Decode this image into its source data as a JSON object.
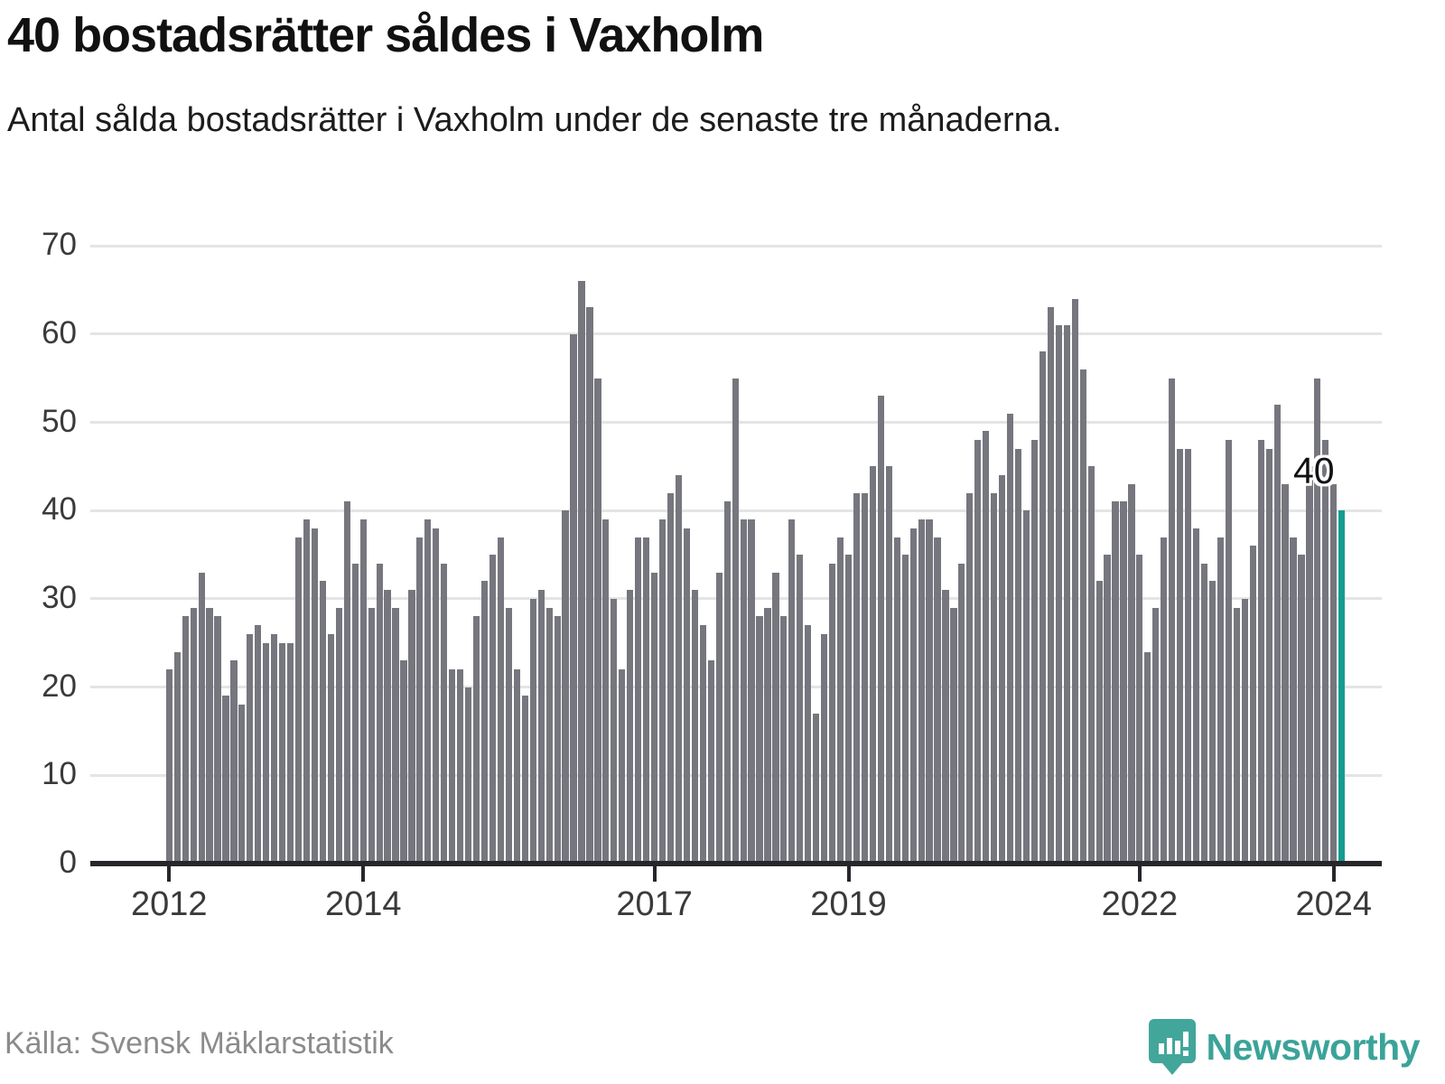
{
  "header": {
    "title": "40 bostadsrätter såldes i Vaxholm",
    "subtitle": "Antal sålda bostadsrätter i Vaxholm under de senaste tre månaderna."
  },
  "footer": {
    "source": "Källa: Svensk Mäklarstatistik",
    "brand": "Newsworthy"
  },
  "colors": {
    "bar": "#76767e",
    "highlight": "#149c91",
    "gridline": "#e4e4e4",
    "axis": "#26262b",
    "brand_teal": "#3ba399"
  },
  "chart_data": {
    "type": "bar",
    "title": "40 bostadsrätter såldes i Vaxholm",
    "subtitle": "Antal sålda bostadsrätter i Vaxholm under de senaste tre månaderna.",
    "source": "Källa: Svensk Mäklarstatistik",
    "xlabel": "",
    "ylabel": "",
    "ylim": [
      0,
      70
    ],
    "yticks": [
      0,
      10,
      20,
      30,
      40,
      50,
      60,
      70
    ],
    "grid": "horizontal",
    "start_month": "2012-01",
    "end_month": "2024-02",
    "x_ticks": [
      {
        "label": "2012",
        "month_index": 0
      },
      {
        "label": "2014",
        "month_index": 24
      },
      {
        "label": "2017",
        "month_index": 60
      },
      {
        "label": "2019",
        "month_index": 84
      },
      {
        "label": "2022",
        "month_index": 120
      },
      {
        "label": "2024",
        "month_index": 144
      }
    ],
    "highlight": {
      "index": 145,
      "value": 40,
      "label": "40"
    },
    "values": [
      22,
      24,
      28,
      29,
      33,
      29,
      28,
      19,
      23,
      18,
      26,
      27,
      25,
      26,
      25,
      25,
      37,
      39,
      38,
      32,
      26,
      29,
      41,
      34,
      39,
      29,
      34,
      31,
      29,
      23,
      31,
      37,
      39,
      38,
      34,
      22,
      22,
      20,
      28,
      32,
      35,
      37,
      29,
      22,
      19,
      30,
      31,
      29,
      28,
      40,
      60,
      66,
      63,
      55,
      39,
      30,
      22,
      31,
      37,
      37,
      33,
      39,
      42,
      44,
      38,
      31,
      27,
      23,
      33,
      41,
      55,
      39,
      39,
      28,
      29,
      33,
      28,
      39,
      35,
      27,
      17,
      26,
      34,
      37,
      35,
      42,
      42,
      45,
      53,
      45,
      37,
      35,
      38,
      39,
      39,
      37,
      31,
      29,
      34,
      42,
      48,
      49,
      42,
      44,
      51,
      47,
      40,
      48,
      58,
      63,
      61,
      61,
      64,
      56,
      45,
      32,
      35,
      41,
      41,
      43,
      35,
      24,
      29,
      37,
      55,
      47,
      47,
      38,
      34,
      32,
      37,
      48,
      29,
      30,
      36,
      48,
      47,
      52,
      43,
      37,
      35,
      45,
      55,
      48,
      43,
      40
    ]
  }
}
